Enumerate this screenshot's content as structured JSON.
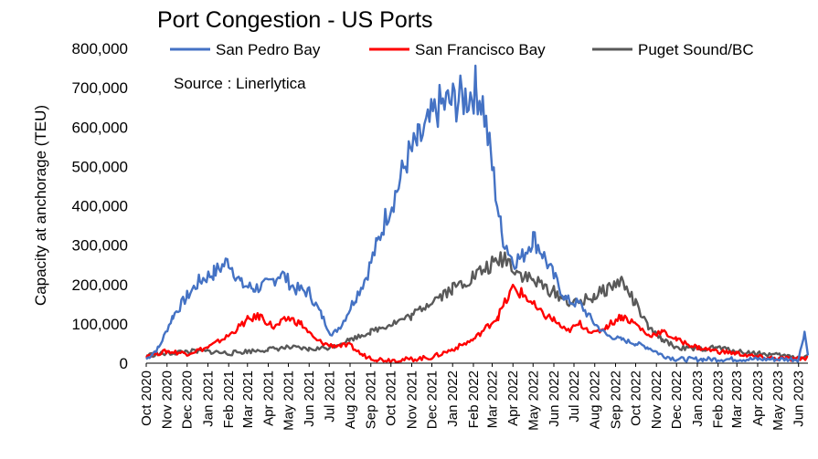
{
  "chart_data": {
    "type": "line",
    "title": "Port Congestion - US Ports",
    "source_note": "Source : Linerlytica",
    "ylabel": "Capacity at anchorage (TEU)",
    "xlabel": "",
    "ylim": [
      0,
      800000
    ],
    "yticks": [
      0,
      100000,
      200000,
      300000,
      400000,
      500000,
      600000,
      700000,
      800000
    ],
    "ytick_labels": [
      "0",
      "100,000",
      "200,000",
      "300,000",
      "400,000",
      "500,000",
      "600,000",
      "700,000",
      "800,000"
    ],
    "x_range": [
      "2020-10-01",
      "2023-06-15"
    ],
    "xticks": [
      "2020-10-01",
      "2020-11-01",
      "2020-12-01",
      "2021-01-01",
      "2021-02-01",
      "2021-03-01",
      "2021-04-01",
      "2021-05-01",
      "2021-06-01",
      "2021-07-01",
      "2021-08-01",
      "2021-09-01",
      "2021-10-01",
      "2021-11-01",
      "2021-12-01",
      "2022-01-01",
      "2022-02-01",
      "2022-03-01",
      "2022-04-01",
      "2022-05-01",
      "2022-06-01",
      "2022-07-01",
      "2022-08-01",
      "2022-09-01",
      "2022-10-01",
      "2022-11-01",
      "2022-12-01",
      "2023-01-01",
      "2023-02-01",
      "2023-03-01",
      "2023-04-01",
      "2023-05-01",
      "2023-06-01"
    ],
    "xtick_labels": [
      "Oct 2020",
      "Nov 2020",
      "Dec 2020",
      "Jan 2021",
      "Feb 2021",
      "Mar 2021",
      "Apr 2021",
      "May 2021",
      "Jun 2021",
      "Jul 2021",
      "Aug 2021",
      "Sep 2021",
      "Oct 2021",
      "Nov 2021",
      "Dec 2021",
      "Jan 2022",
      "Feb 2022",
      "Mar 2022",
      "Apr 2022",
      "May 2022",
      "Jun 2022",
      "Jul 2022",
      "Aug 2022",
      "Sep 2022",
      "Oct 2022",
      "Nov 2022",
      "Dec 2022",
      "Jan 2023",
      "Feb 2023",
      "Mar 2023",
      "Apr 2023",
      "May 2023",
      "Jun 2023"
    ],
    "grid": false,
    "legend_position": "top",
    "series": [
      {
        "name": "San Pedro Bay",
        "color": "#4472C4",
        "x": [
          "2020-10-01",
          "2020-10-20",
          "2020-11-10",
          "2020-12-01",
          "2020-12-20",
          "2021-01-10",
          "2021-02-01",
          "2021-02-20",
          "2021-03-10",
          "2021-04-01",
          "2021-04-20",
          "2021-05-10",
          "2021-06-01",
          "2021-06-20",
          "2021-07-05",
          "2021-07-20",
          "2021-08-10",
          "2021-08-25",
          "2021-09-10",
          "2021-09-25",
          "2021-10-10",
          "2021-10-25",
          "2021-11-10",
          "2021-11-25",
          "2021-12-10",
          "2021-12-25",
          "2022-01-10",
          "2022-01-25",
          "2022-02-05",
          "2022-02-15",
          "2022-03-01",
          "2022-03-15",
          "2022-04-01",
          "2022-04-15",
          "2022-05-01",
          "2022-05-15",
          "2022-06-01",
          "2022-06-20",
          "2022-07-10",
          "2022-08-01",
          "2022-08-20",
          "2022-09-10",
          "2022-10-01",
          "2022-10-20",
          "2022-11-10",
          "2022-12-01",
          "2022-12-20",
          "2023-01-10",
          "2023-02-01",
          "2023-03-01",
          "2023-04-01",
          "2023-05-01",
          "2023-06-01",
          "2023-06-10",
          "2023-06-15"
        ],
        "values": [
          10000,
          40000,
          120000,
          170000,
          210000,
          230000,
          260000,
          200000,
          190000,
          200000,
          230000,
          190000,
          180000,
          120000,
          70000,
          100000,
          170000,
          220000,
          300000,
          380000,
          440000,
          520000,
          560000,
          600000,
          650000,
          660000,
          670000,
          680000,
          700000,
          660000,
          500000,
          330000,
          260000,
          270000,
          320000,
          280000,
          220000,
          160000,
          150000,
          100000,
          70000,
          60000,
          50000,
          40000,
          20000,
          10000,
          10000,
          10000,
          10000,
          10000,
          10000,
          10000,
          10000,
          80000,
          20000
        ]
      },
      {
        "name": "San Francisco Bay",
        "color": "#FF0000",
        "x": [
          "2020-10-01",
          "2020-11-01",
          "2020-12-01",
          "2021-01-01",
          "2021-02-01",
          "2021-03-01",
          "2021-03-20",
          "2021-04-10",
          "2021-05-01",
          "2021-05-20",
          "2021-06-10",
          "2021-07-01",
          "2021-08-01",
          "2021-08-20",
          "2021-09-10",
          "2021-10-01",
          "2021-11-01",
          "2021-12-01",
          "2022-01-01",
          "2022-02-01",
          "2022-02-20",
          "2022-03-10",
          "2022-04-01",
          "2022-04-20",
          "2022-05-10",
          "2022-06-01",
          "2022-06-20",
          "2022-07-10",
          "2022-08-01",
          "2022-08-20",
          "2022-09-10",
          "2022-10-01",
          "2022-10-20",
          "2022-11-10",
          "2022-12-01",
          "2023-01-01",
          "2023-02-01",
          "2023-03-01",
          "2023-04-01",
          "2023-05-01",
          "2023-06-01",
          "2023-06-15"
        ],
        "values": [
          20000,
          30000,
          25000,
          40000,
          70000,
          110000,
          120000,
          90000,
          115000,
          100000,
          60000,
          45000,
          45000,
          20000,
          10000,
          8000,
          10000,
          15000,
          35000,
          60000,
          90000,
          120000,
          190000,
          170000,
          130000,
          110000,
          80000,
          100000,
          75000,
          95000,
          120000,
          100000,
          70000,
          80000,
          60000,
          40000,
          30000,
          25000,
          15000,
          12000,
          10000,
          15000
        ]
      },
      {
        "name": "Puget Sound/BC",
        "color": "#595959",
        "x": [
          "2020-10-01",
          "2020-11-01",
          "2020-12-01",
          "2021-01-01",
          "2021-02-01",
          "2021-03-01",
          "2021-04-01",
          "2021-05-01",
          "2021-06-01",
          "2021-07-01",
          "2021-08-01",
          "2021-09-01",
          "2021-10-01",
          "2021-11-01",
          "2021-12-01",
          "2022-01-01",
          "2022-02-01",
          "2022-03-01",
          "2022-03-20",
          "2022-04-10",
          "2022-05-01",
          "2022-06-01",
          "2022-07-01",
          "2022-08-01",
          "2022-08-20",
          "2022-09-10",
          "2022-10-01",
          "2022-10-20",
          "2022-11-10",
          "2022-12-01",
          "2023-01-01",
          "2023-02-01",
          "2023-03-01",
          "2023-04-01",
          "2023-05-01",
          "2023-06-01",
          "2023-06-15"
        ],
        "values": [
          20000,
          25000,
          30000,
          30000,
          25000,
          30000,
          35000,
          40000,
          35000,
          40000,
          60000,
          80000,
          100000,
          120000,
          160000,
          190000,
          220000,
          250000,
          270000,
          230000,
          210000,
          180000,
          150000,
          170000,
          190000,
          210000,
          150000,
          90000,
          60000,
          40000,
          35000,
          40000,
          30000,
          25000,
          20000,
          15000,
          20000
        ]
      }
    ]
  }
}
